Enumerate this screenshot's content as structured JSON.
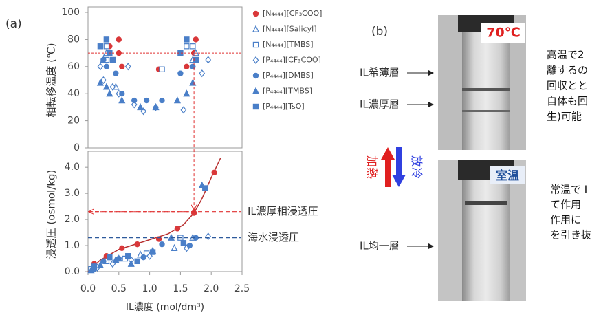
{
  "chart_data": [
    {
      "type": "scatter",
      "ylabel": "相転移温度 (℃)",
      "xlim": [
        0,
        2.5
      ],
      "ylim": [
        0,
        100
      ],
      "yticks": [
        0,
        20,
        40,
        60,
        80,
        100
      ],
      "hline": 70,
      "vline": 1.72,
      "line_color": "#e03030",
      "series": [
        {
          "name": "[N₄₄₄₄][CF₃COO]",
          "color": "#d9383a",
          "marker": "circle",
          "filled": true,
          "x": [
            0.35,
            0.5,
            0.5,
            0.55,
            1.15,
            1.6,
            1.75,
            1.72
          ],
          "values": [
            75,
            80,
            70,
            60,
            58,
            60,
            80,
            70
          ]
        },
        {
          "name": "[N₄₄₄₄][Salicyl]",
          "color": "#4a7fc8",
          "marker": "triangle",
          "filled": false,
          "x": [
            0.25,
            0.3,
            0.45,
            1.7,
            1.75
          ],
          "values": [
            65,
            70,
            45,
            65,
            70
          ]
        },
        {
          "name": "[N₄₄₄₄][TMBS]",
          "color": "#4a7fc8",
          "marker": "square",
          "filled": false,
          "x": [
            0.3,
            0.3,
            1.2,
            1.6,
            1.7
          ],
          "values": [
            75,
            65,
            58,
            75,
            75
          ]
        },
        {
          "name": "[P₄₄₄₄][CF₃COO]",
          "color": "#4a7fc8",
          "marker": "diamond",
          "filled": false,
          "x": [
            0.2,
            0.25,
            0.4,
            0.5,
            0.65,
            0.75,
            0.9,
            1.1,
            1.55,
            1.85,
            1.95
          ],
          "values": [
            60,
            50,
            45,
            40,
            60,
            32,
            27,
            30,
            28,
            55,
            65
          ]
        },
        {
          "name": "[P₄₄₄₄][DMBS]",
          "color": "#4a7fc8",
          "marker": "circle",
          "filled": true,
          "x": [
            0.25,
            0.3,
            0.45,
            0.55,
            0.75,
            0.95,
            1.2,
            1.5,
            1.7
          ],
          "values": [
            65,
            60,
            55,
            40,
            35,
            35,
            35,
            55,
            60
          ]
        },
        {
          "name": "[P₄₄₄₄][TMBS]",
          "color": "#4a7fc8",
          "marker": "triangle",
          "filled": true,
          "x": [
            0.2,
            0.3,
            0.35,
            0.55,
            0.85,
            1.1,
            1.45,
            1.6,
            1.7
          ],
          "values": [
            48,
            45,
            40,
            35,
            30,
            30,
            35,
            40,
            48
          ]
        },
        {
          "name": "[P₄₄₄₄][TsO]",
          "color": "#4a7fc8",
          "marker": "square",
          "filled": true,
          "x": [
            0.2,
            0.3,
            0.35,
            0.4,
            1.5,
            1.6,
            1.75
          ],
          "values": [
            75,
            80,
            70,
            65,
            70,
            80,
            65
          ]
        }
      ]
    },
    {
      "type": "scatter",
      "ylabel": "浸透圧 (osmol/kg)",
      "xlabel": "IL濃度 (mol/dm³)",
      "xlim": [
        0,
        2.5
      ],
      "ylim": [
        0,
        4.4
      ],
      "xticks": [
        {
          "value": 0,
          "label": "0.0"
        },
        0.5,
        {
          "value": 1,
          "label": "1.0"
        },
        1.5,
        {
          "value": 2,
          "label": "2.0"
        },
        2.5
      ],
      "yticks": [
        {
          "value": 0,
          "label": "0.0"
        },
        {
          "value": 1,
          "label": "1.0"
        },
        {
          "value": 2,
          "label": "2.0"
        },
        {
          "value": 3,
          "label": "3.0"
        },
        {
          "value": 4,
          "label": "4.0"
        }
      ],
      "annotations": [
        {
          "text": "IL濃厚相浸透圧",
          "y": 2.3,
          "color": "#e03030"
        },
        {
          "text": "海水浸透圧",
          "y": 1.3,
          "color": "#2e5a9c"
        }
      ],
      "curve": {
        "color": "#b83030",
        "x": [
          0,
          0.2,
          0.5,
          0.9,
          1.3,
          1.55,
          1.72,
          1.85,
          2.0,
          2.15
        ],
        "values": [
          0,
          0.45,
          0.85,
          1.15,
          1.45,
          1.8,
          2.25,
          2.8,
          3.6,
          4.35
        ]
      },
      "series": [
        {
          "color": "#d9383a",
          "marker": "circle",
          "filled": true,
          "x": [
            0.1,
            0.3,
            0.55,
            0.8,
            1.15,
            1.45,
            1.72,
            2.05
          ],
          "values": [
            0.3,
            0.6,
            0.9,
            1.05,
            1.25,
            1.65,
            2.25,
            3.8
          ]
        },
        {
          "color": "#4a7fc8",
          "marker": "triangle",
          "filled": false,
          "x": [
            0.1,
            0.5,
            0.85,
            1.4,
            1.7
          ],
          "values": [
            0.2,
            0.5,
            0.65,
            0.9,
            1.3
          ]
        },
        {
          "color": "#4a7fc8",
          "marker": "square",
          "filled": false,
          "x": [
            0.05,
            0.3,
            0.6,
            0.95,
            1.5
          ],
          "values": [
            0.1,
            0.4,
            0.5,
            0.7,
            1.3
          ]
        },
        {
          "color": "#4a7fc8",
          "marker": "diamond",
          "filled": false,
          "x": [
            0.15,
            0.4,
            0.7,
            1.0,
            1.6,
            1.95
          ],
          "values": [
            0.15,
            0.3,
            0.45,
            0.6,
            0.9,
            1.35
          ]
        },
        {
          "color": "#4a7fc8",
          "marker": "circle",
          "filled": true,
          "x": [
            0.1,
            0.25,
            0.5,
            0.9,
            1.2,
            1.65,
            1.75
          ],
          "values": [
            0.1,
            0.4,
            0.5,
            0.55,
            1.05,
            1.0,
            1.3
          ]
        },
        {
          "color": "#4a7fc8",
          "marker": "triangle",
          "filled": true,
          "x": [
            0.05,
            0.2,
            0.45,
            0.7,
            1.05,
            1.35,
            1.85
          ],
          "values": [
            0.05,
            0.25,
            0.45,
            0.3,
            0.8,
            1.3,
            3.3
          ]
        },
        {
          "color": "#4a7fc8",
          "marker": "square",
          "filled": true,
          "x": [
            0.1,
            0.35,
            0.65,
            0.8,
            1.05,
            1.55,
            1.9
          ],
          "values": [
            0.2,
            0.55,
            0.6,
            0.4,
            0.75,
            1.1,
            3.2
          ]
        }
      ]
    }
  ],
  "panel_a": "(a)",
  "panel_b": {
    "label": "(b)",
    "hot": "70℃",
    "room": "室温",
    "dilute_layer": "IL希薄層",
    "rich_layer": "IL濃厚層",
    "uniform_layer": "IL均一層",
    "heat": "加熱",
    "cool": "放冷",
    "text_hot": [
      "高温で2",
      "離するの",
      "回収とと",
      "自体も回",
      "生)可能"
    ],
    "text_room": [
      "常温で I",
      "て作用",
      "作用に",
      "を引き抜"
    ]
  }
}
